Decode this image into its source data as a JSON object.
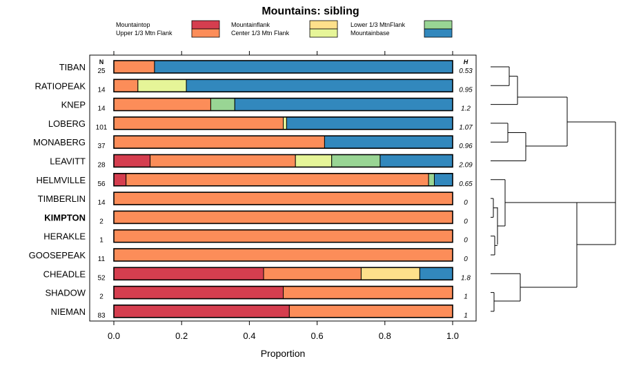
{
  "chart_data": {
    "type": "bar",
    "stacked": true,
    "orientation": "horizontal",
    "title": "Mountains: sibling",
    "xlabel": "Proportion",
    "xlim": [
      0,
      1
    ],
    "x_ticks": [
      "0.0",
      "0.2",
      "0.4",
      "0.6",
      "0.8",
      "1.0"
    ],
    "x_tick_values": [
      0,
      0.2,
      0.4,
      0.6,
      0.8,
      1.0
    ],
    "n_header": "N",
    "h_header": "H",
    "legend": [
      {
        "name": "Mountaintop",
        "color": "#d53e4f"
      },
      {
        "name": "Upper 1/3 Mtn Flank",
        "color": "#fc8d59"
      },
      {
        "name": "Mountainflank",
        "color": "#fee08b"
      },
      {
        "name": "Center 1/3 Mtn Flank",
        "color": "#e6f598"
      },
      {
        "name": "Lower 1/3 MtnFlank",
        "color": "#99d594"
      },
      {
        "name": "Mountainbase",
        "color": "#3288bd"
      }
    ],
    "categories": [
      "TIBAN",
      "RATIOPEAK",
      "KNEP",
      "LOBERG",
      "MONABERG",
      "LEAVITT",
      "HELMVILLE",
      "TIMBERLIN",
      "KIMPTON",
      "HERAKLE",
      "GOOSEPEAK",
      "CHEADLE",
      "SHADOW",
      "NIEMAN"
    ],
    "highlight": "KIMPTON",
    "n": [
      "25",
      "14",
      "14",
      "101",
      "37",
      "28",
      "56",
      "14",
      "2",
      "1",
      "11",
      "52",
      "2",
      "83"
    ],
    "h": [
      "0.53",
      "0.95",
      "1.2",
      "1.07",
      "0.96",
      "2.09",
      "0.65",
      "0",
      "0",
      "0",
      "0",
      "1.8",
      "1",
      "1"
    ],
    "series": [
      {
        "name": "Mountaintop",
        "values": [
          0,
          0,
          0,
          0,
          0,
          0.107,
          0.036,
          0,
          0,
          0,
          0,
          0.442,
          0.5,
          0.518
        ]
      },
      {
        "name": "Upper 1/3 Mtn Flank",
        "values": [
          0.12,
          0.071,
          0.286,
          0.5,
          0.622,
          0.429,
          0.893,
          1,
          1,
          1,
          1,
          0.288,
          0.5,
          0.482
        ]
      },
      {
        "name": "Mountainflank",
        "values": [
          0,
          0,
          0,
          0,
          0,
          0,
          0,
          0,
          0,
          0,
          0,
          0.173,
          0,
          0
        ]
      },
      {
        "name": "Center 1/3 Mtn Flank",
        "values": [
          0,
          0.143,
          0,
          0.01,
          0,
          0.107,
          0,
          0,
          0,
          0,
          0,
          0,
          0,
          0
        ]
      },
      {
        "name": "Lower 1/3 MtnFlank",
        "values": [
          0,
          0,
          0.071,
          0,
          0,
          0.143,
          0.017,
          0,
          0,
          0,
          0,
          0,
          0,
          0
        ]
      },
      {
        "name": "Mountainbase",
        "values": [
          0.88,
          0.786,
          0.643,
          0.49,
          0.378,
          0.214,
          0.054,
          0,
          0,
          0,
          0,
          0.097,
          0,
          0
        ]
      }
    ]
  }
}
